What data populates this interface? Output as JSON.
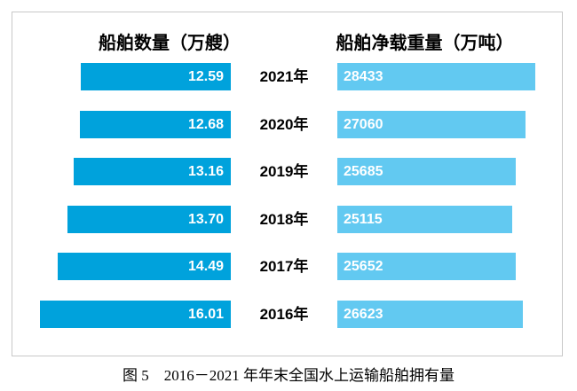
{
  "chart_data": {
    "type": "bar",
    "variant": "tornado",
    "title": "图 5　2016－2021 年年末全国水上运输船舶拥有量",
    "left_header": "船舶数量（万艘）",
    "right_header": "船舶净载重量（万吨）",
    "categories": [
      "2021年",
      "2020年",
      "2019年",
      "2018年",
      "2017年",
      "2016年"
    ],
    "series": [
      {
        "name": "船舶数量（万艘）",
        "values": [
          12.59,
          12.68,
          13.16,
          13.7,
          14.49,
          16.01
        ],
        "labels": [
          "12.59",
          "12.68",
          "13.16",
          "13.70",
          "14.49",
          "16.01"
        ],
        "color": "#00a2dc",
        "bar_direction": "right-to-left",
        "value_align": "right-inside"
      },
      {
        "name": "船舶净载重量（万吨）",
        "values": [
          28433,
          27060,
          25685,
          25115,
          25652,
          26623
        ],
        "labels": [
          "28433",
          "27060",
          "25685",
          "25115",
          "25652",
          "26623"
        ],
        "color": "#62c9f1",
        "bar_direction": "left-to-right",
        "value_align": "left-inside"
      }
    ],
    "legend_position": "none",
    "grid": false,
    "border_color": "#c8c8c8",
    "value_text_color": "#ffffff",
    "axis_text_color": "#000000"
  }
}
